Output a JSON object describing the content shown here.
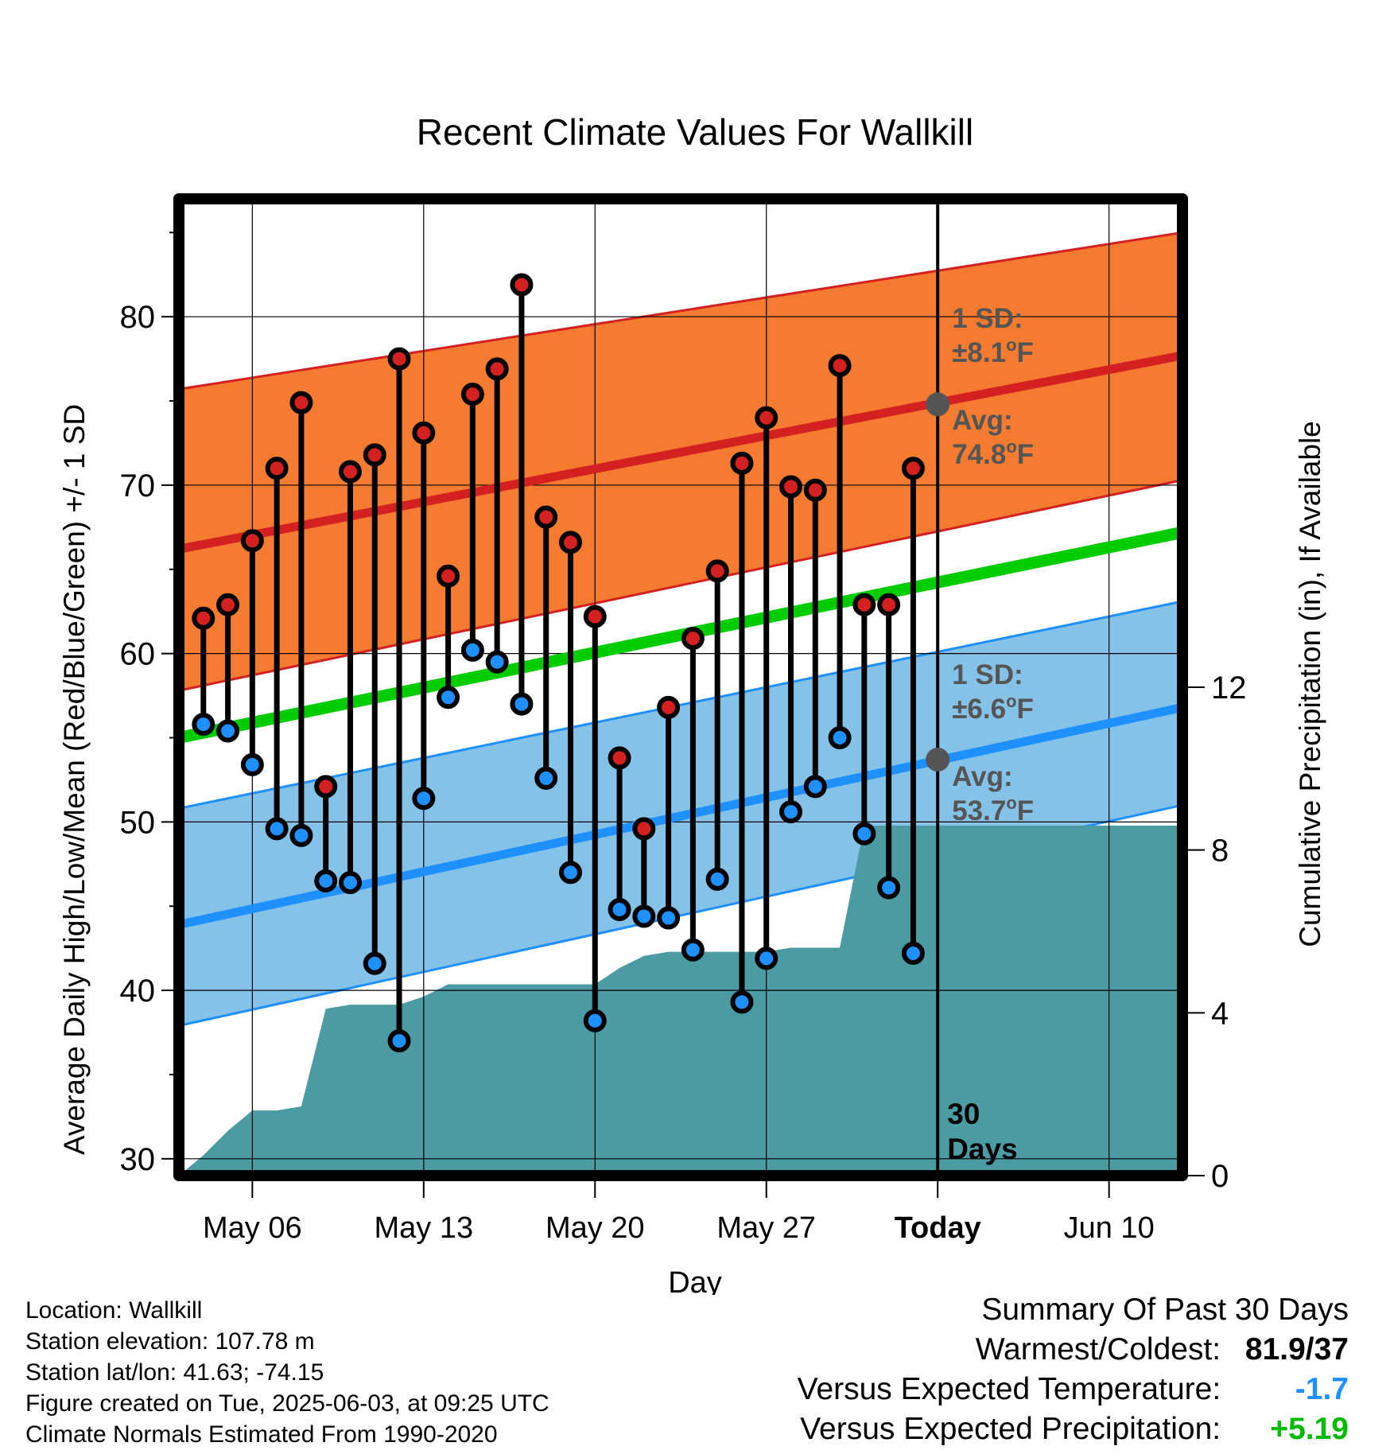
{
  "chart_data": {
    "type": "line",
    "title": "Recent Climate Values For Wallkill",
    "xlabel": "Day",
    "ylabel": "Average Daily High/Low/Mean (Red/Blue/Green) +/- 1 SD",
    "y2label": "Cumulative Precipitation (in), If Available",
    "ylim": [
      29,
      87
    ],
    "y2lim": [
      0,
      24
    ],
    "yticks": [
      30,
      40,
      50,
      60,
      70,
      80
    ],
    "y2ticks": [
      0,
      4,
      8,
      12
    ],
    "x_tick_labels": [
      "May 06",
      "May 13",
      "May 20",
      "May 27",
      "Today",
      "Jun 10"
    ],
    "x_range_days": [
      "2025-05-03",
      "2025-06-13"
    ],
    "x_tick_days": [
      "2025-05-06",
      "2025-05-13",
      "2025-05-20",
      "2025-05-27",
      "2025-06-03",
      "2025-06-10"
    ],
    "today": "2025-06-03",
    "today_label": "30 Days",
    "grid": true,
    "colors": {
      "high": "#d42020",
      "low": "#1e90ff",
      "mean": "#00cc00",
      "high_band": "#f47b30",
      "low_band": "#85c2e8",
      "precip": "#4a9ba4"
    },
    "normals": {
      "high_avg": {
        "start": 66.2,
        "end": 77.7
      },
      "high_sd_upper": {
        "start": 75.7,
        "end": 85.0
      },
      "high_sd_lower": {
        "start": 57.8,
        "end": 70.3
      },
      "low_avg": {
        "start": 43.9,
        "end": 56.8
      },
      "low_sd_upper": {
        "start": 50.8,
        "end": 63.1
      },
      "low_sd_lower": {
        "start": 37.9,
        "end": 51.0
      },
      "mean": {
        "start": 55.0,
        "end": 67.2
      }
    },
    "series": [
      {
        "name": "High",
        "x": [
          "2025-05-04",
          "2025-05-05",
          "2025-05-06",
          "2025-05-07",
          "2025-05-08",
          "2025-05-09",
          "2025-05-10",
          "2025-05-11",
          "2025-05-12",
          "2025-05-13",
          "2025-05-14",
          "2025-05-15",
          "2025-05-16",
          "2025-05-17",
          "2025-05-18",
          "2025-05-19",
          "2025-05-20",
          "2025-05-21",
          "2025-05-22",
          "2025-05-23",
          "2025-05-24",
          "2025-05-25",
          "2025-05-26",
          "2025-05-27",
          "2025-05-28",
          "2025-05-29",
          "2025-05-30",
          "2025-05-31",
          "2025-06-01",
          "2025-06-02"
        ],
        "values": [
          62.1,
          62.9,
          66.7,
          71.0,
          74.9,
          52.1,
          70.8,
          71.8,
          77.5,
          73.1,
          64.6,
          75.4,
          76.9,
          81.9,
          68.1,
          66.6,
          62.2,
          53.8,
          49.6,
          56.8,
          60.9,
          64.9,
          71.3,
          74.0,
          69.9,
          69.7,
          77.1,
          62.9,
          62.9,
          71.0
        ]
      },
      {
        "name": "Low",
        "x": [
          "2025-05-04",
          "2025-05-05",
          "2025-05-06",
          "2025-05-07",
          "2025-05-08",
          "2025-05-09",
          "2025-05-10",
          "2025-05-11",
          "2025-05-12",
          "2025-05-13",
          "2025-05-14",
          "2025-05-15",
          "2025-05-16",
          "2025-05-17",
          "2025-05-18",
          "2025-05-19",
          "2025-05-20",
          "2025-05-21",
          "2025-05-22",
          "2025-05-23",
          "2025-05-24",
          "2025-05-25",
          "2025-05-26",
          "2025-05-27",
          "2025-05-28",
          "2025-05-29",
          "2025-05-30",
          "2025-05-31",
          "2025-06-01",
          "2025-06-02"
        ],
        "values": [
          55.8,
          55.4,
          53.4,
          49.6,
          49.2,
          46.5,
          46.4,
          41.6,
          37.0,
          51.4,
          57.4,
          60.2,
          59.5,
          57.0,
          52.6,
          47.0,
          38.2,
          44.8,
          44.4,
          44.3,
          42.4,
          46.6,
          39.3,
          41.9,
          50.6,
          52.1,
          55.0,
          49.3,
          46.1,
          42.2
        ]
      }
    ],
    "precip_cumulative": {
      "x": [
        "2025-05-03",
        "2025-05-04",
        "2025-05-05",
        "2025-05-06",
        "2025-05-07",
        "2025-05-08",
        "2025-05-09",
        "2025-05-10",
        "2025-05-11",
        "2025-05-12",
        "2025-05-13",
        "2025-05-14",
        "2025-05-15",
        "2025-05-16",
        "2025-05-17",
        "2025-05-18",
        "2025-05-19",
        "2025-05-20",
        "2025-05-21",
        "2025-05-22",
        "2025-05-23",
        "2025-05-24",
        "2025-05-25",
        "2025-05-26",
        "2025-05-27",
        "2025-05-28",
        "2025-05-29",
        "2025-05-30",
        "2025-05-31",
        "2025-06-01",
        "2025-06-03",
        "2025-06-13"
      ],
      "values": [
        0.0,
        0.5,
        1.1,
        1.6,
        1.6,
        1.7,
        4.1,
        4.2,
        4.2,
        4.2,
        4.4,
        4.7,
        4.7,
        4.7,
        4.7,
        4.7,
        4.7,
        4.7,
        5.1,
        5.4,
        5.5,
        5.5,
        5.5,
        5.5,
        5.5,
        5.6,
        5.6,
        5.6,
        8.6,
        8.6,
        8.6,
        8.6
      ]
    },
    "annotations": {
      "high_sd_label": "1 SD:",
      "high_sd_value": "±8.1",
      "high_avg_label": "Avg:",
      "high_avg_value": "74.8",
      "high_avg_num": 74.8,
      "low_sd_label": "1 SD:",
      "low_sd_value": "±6.6",
      "low_avg_label": "Avg:",
      "low_avg_value": "53.7",
      "low_avg_num": 53.7,
      "degree": "o",
      "unit": "F"
    }
  },
  "info": {
    "location": "Location: Wallkill",
    "elevation": "Station elevation: 107.78 m",
    "latlon": "Station lat/lon: 41.63; -74.15",
    "created": "Figure created on Tue, 2025-06-03, at 09:25 UTC",
    "normals": "Climate Normals Estimated From 1990-2020"
  },
  "summary": {
    "title": "Summary Of Past 30 Days",
    "warm_cold_label": "Warmest/Coldest:",
    "warm_cold_value": "81.9/37",
    "temp_label": "Versus Expected Temperature:",
    "temp_value": "-1.7",
    "temp_color": "#1e90ff",
    "precip_label": "Versus Expected Precipitation:",
    "precip_value": "+5.19",
    "precip_color": "#00bb00"
  }
}
